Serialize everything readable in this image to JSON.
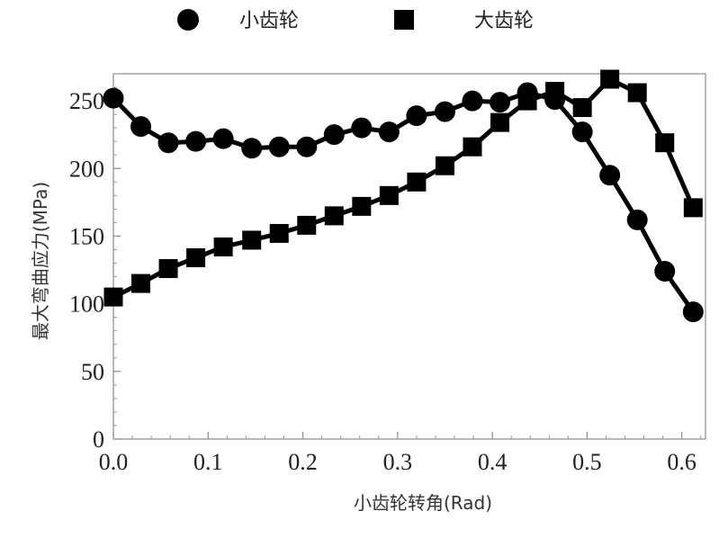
{
  "chart_data": {
    "type": "line",
    "title": "",
    "xlabel": "小齿轮转角(Rad)",
    "ylabel": "最大弯曲应力(MPa)",
    "xlim": [
      0.0,
      0.625
    ],
    "ylim": [
      0,
      270
    ],
    "x_ticks": [
      0.0,
      0.1,
      0.2,
      0.3,
      0.4,
      0.5,
      0.6
    ],
    "x_tick_labels": [
      "0.0",
      "0.1",
      "0.2",
      "0.3",
      "0.4",
      "0.5",
      "0.6"
    ],
    "y_ticks": [
      0,
      50,
      100,
      150,
      200,
      250
    ],
    "y_tick_labels": [
      "0",
      "50",
      "100",
      "150",
      "200",
      "250"
    ],
    "grid": false,
    "legend_position": "top",
    "series": [
      {
        "name": "小齿轮",
        "marker": "circle",
        "color": "#000000",
        "x": [
          0.0,
          0.029,
          0.058,
          0.087,
          0.116,
          0.146,
          0.175,
          0.204,
          0.233,
          0.262,
          0.291,
          0.32,
          0.35,
          0.379,
          0.408,
          0.437,
          0.466,
          0.495,
          0.524,
          0.553,
          0.582,
          0.612
        ],
        "y": [
          252,
          231,
          219,
          220,
          222,
          215,
          216,
          216,
          225,
          230,
          227,
          239,
          242,
          250,
          249,
          256,
          251,
          227,
          195,
          162,
          124,
          94
        ]
      },
      {
        "name": "大齿轮",
        "marker": "square",
        "color": "#000000",
        "x": [
          0.0,
          0.029,
          0.058,
          0.087,
          0.116,
          0.146,
          0.175,
          0.204,
          0.233,
          0.262,
          0.291,
          0.32,
          0.35,
          0.379,
          0.408,
          0.437,
          0.466,
          0.495,
          0.524,
          0.553,
          0.582,
          0.612
        ],
        "y": [
          105,
          115,
          126,
          134,
          142,
          147,
          152,
          158,
          165,
          172,
          180,
          190,
          202,
          216,
          234,
          250,
          257,
          245,
          266,
          256,
          219,
          171
        ]
      }
    ]
  }
}
